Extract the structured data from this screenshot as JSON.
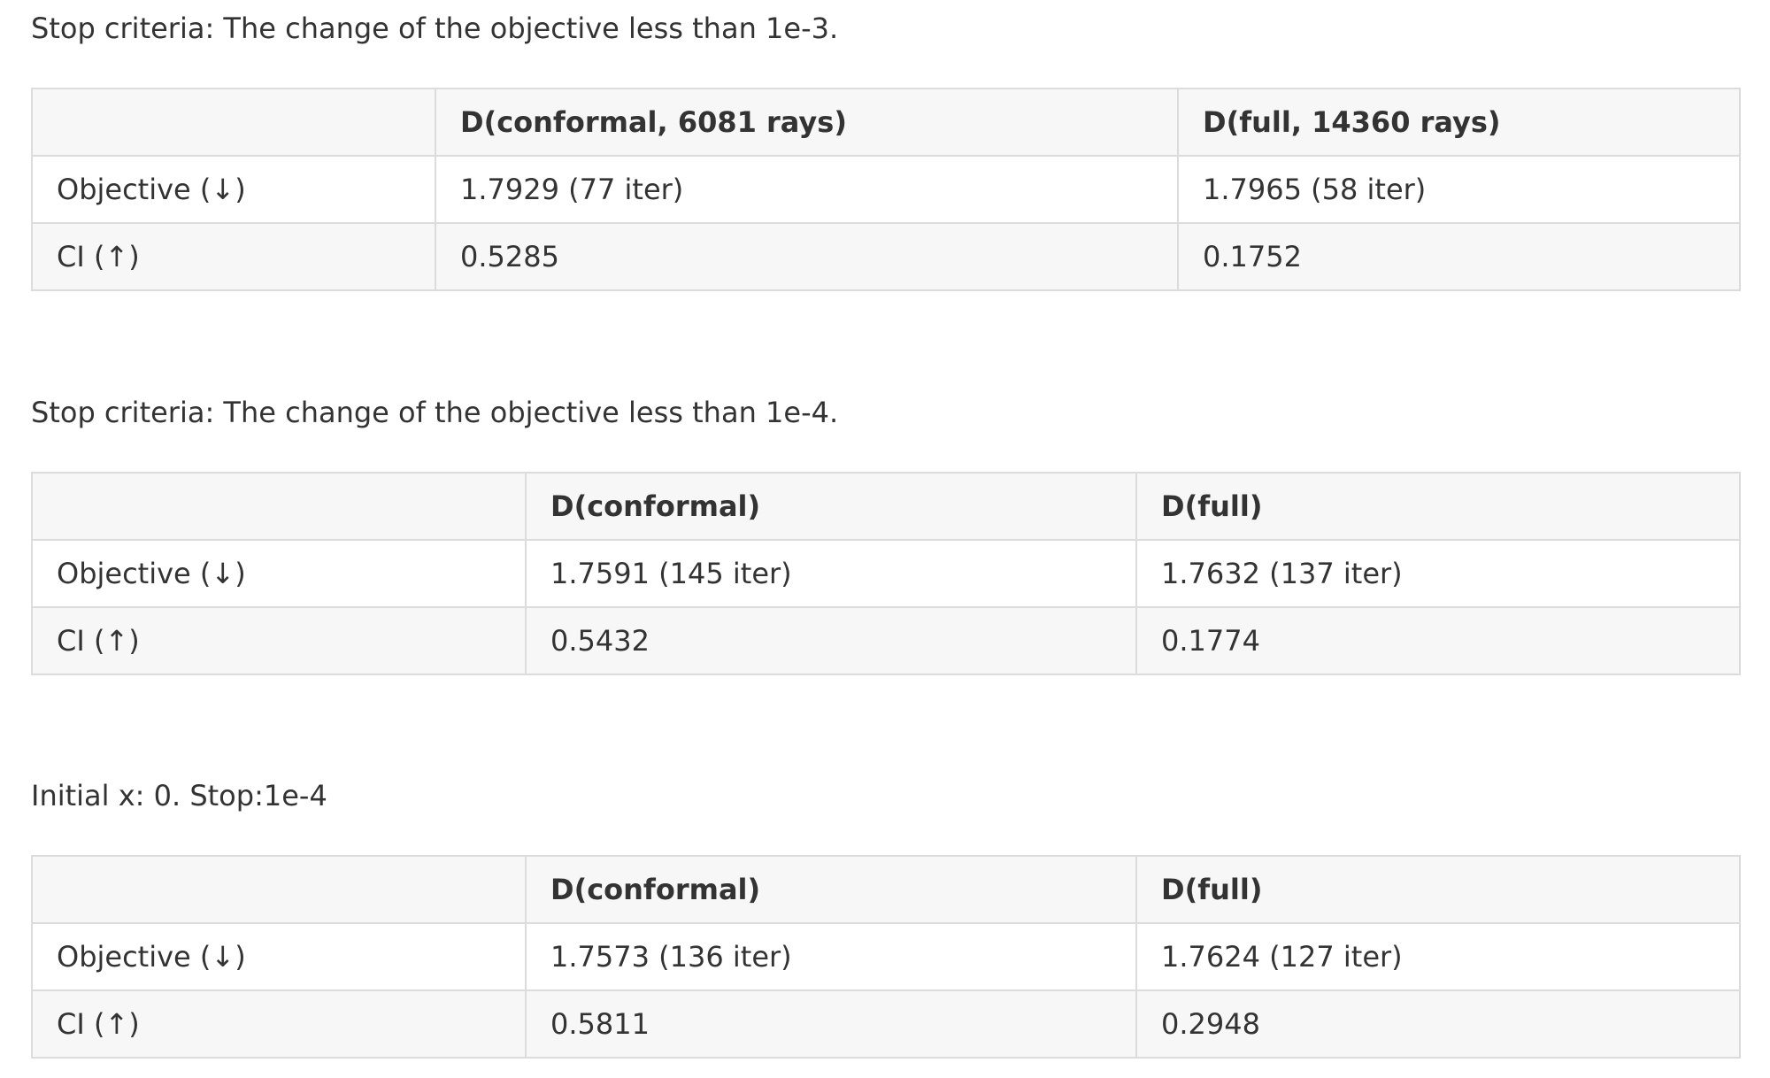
{
  "tables": [
    {
      "caption": "Stop criteria: The change of the objective less than 1e-3.",
      "headers": [
        "",
        "D(conformal, 6081 rays)",
        "D(full, 14360 rays)"
      ],
      "rows": [
        [
          "Objective (↓)",
          "1.7929 (77 iter)",
          "1.7965 (58 iter)"
        ],
        [
          "CI (↑)",
          "0.5285",
          "0.1752"
        ]
      ]
    },
    {
      "caption": "Stop criteria: The change of the objective less than 1e-4.",
      "headers": [
        "",
        "D(conformal)",
        "D(full)"
      ],
      "rows": [
        [
          "Objective (↓)",
          "1.7591 (145 iter)",
          "1.7632 (137 iter)"
        ],
        [
          "CI (↑)",
          "0.5432",
          "0.1774"
        ]
      ]
    },
    {
      "caption": "Initial x: 0. Stop:1e-4",
      "headers": [
        "",
        "D(conformal)",
        "D(full)"
      ],
      "rows": [
        [
          "Objective (↓)",
          "1.7573 (136 iter)",
          "1.7624 (127 iter)"
        ],
        [
          "CI (↑)",
          "0.5811",
          "0.2948"
        ]
      ]
    }
  ]
}
